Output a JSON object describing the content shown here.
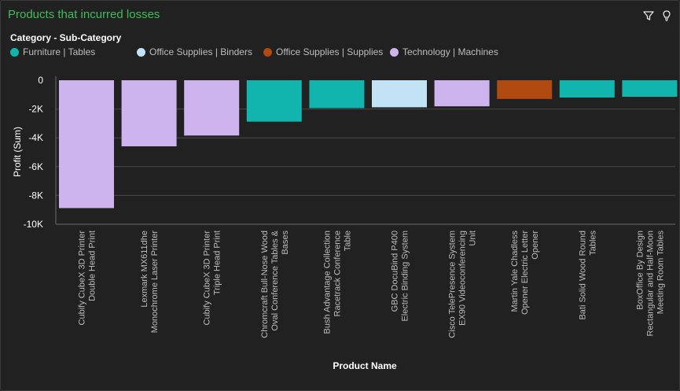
{
  "title": "Products that incurred losses",
  "toolbar": {
    "filter_icon": "filter-icon",
    "insights_icon": "lightbulb-icon"
  },
  "legend": {
    "title": "Category - Sub-Category",
    "items": [
      {
        "label": "Furniture | Tables",
        "color": "#12b4ae"
      },
      {
        "label": "Office Supplies | Binders",
        "color": "#c2e3f6"
      },
      {
        "label": "Office Supplies | Supplies",
        "color": "#b04a10"
      },
      {
        "label": "Technology | Machines",
        "color": "#cdb4ef"
      }
    ]
  },
  "chart_data": {
    "type": "bar",
    "xlabel": "Product Name",
    "ylabel": "Profit (Sum)",
    "ylim": [
      -10000,
      0
    ],
    "yticks": [
      0,
      -2000,
      -4000,
      -6000,
      -8000,
      -10000
    ],
    "ytick_labels": [
      "0",
      "-2K",
      "-4K",
      "-6K",
      "-8K",
      "-10K"
    ],
    "grid": true,
    "legend_position": "top-left",
    "categories": [
      {
        "lines": [
          "Cubify CubeX 3D Printer",
          "Double Head Print"
        ],
        "value": -8880,
        "group": "Technology | Machines"
      },
      {
        "lines": [
          "Lexmark MX611dhe",
          "Monochrome Laser Printer"
        ],
        "value": -4590,
        "group": "Technology | Machines"
      },
      {
        "lines": [
          "Cubify CubeX 3D Printer",
          "Triple Head Print"
        ],
        "value": -3840,
        "group": "Technology | Machines"
      },
      {
        "lines": [
          "Chromcraft Bull-Nose Wood",
          "Oval Conference Tables &",
          "Bases"
        ],
        "value": -2876,
        "group": "Furniture | Tables"
      },
      {
        "lines": [
          "Bush Advantage Collection",
          "Racetrack Conference",
          "Table"
        ],
        "value": -1934,
        "group": "Furniture | Tables"
      },
      {
        "lines": [
          "GBC DocuBind P400",
          "Electric Binding System"
        ],
        "value": -1878,
        "group": "Office Supplies | Binders"
      },
      {
        "lines": [
          "Cisco TelePresence System",
          "EX90 Videoconferencing",
          "Unit"
        ],
        "value": -1811,
        "group": "Technology | Machines"
      },
      {
        "lines": [
          "Martin Yale Chadless",
          "Opener Electric Letter",
          "Opener"
        ],
        "value": -1299,
        "group": "Office Supplies | Supplies"
      },
      {
        "lines": [
          "Bati Solid Wood Round",
          "Tables"
        ],
        "value": -1201,
        "group": "Furniture | Tables"
      },
      {
        "lines": [
          "BoxOffice By Design",
          "Rectangular and Half-Moon",
          "Meeting Room Tables"
        ],
        "value": -1148,
        "group": "Furniture | Tables"
      }
    ]
  }
}
